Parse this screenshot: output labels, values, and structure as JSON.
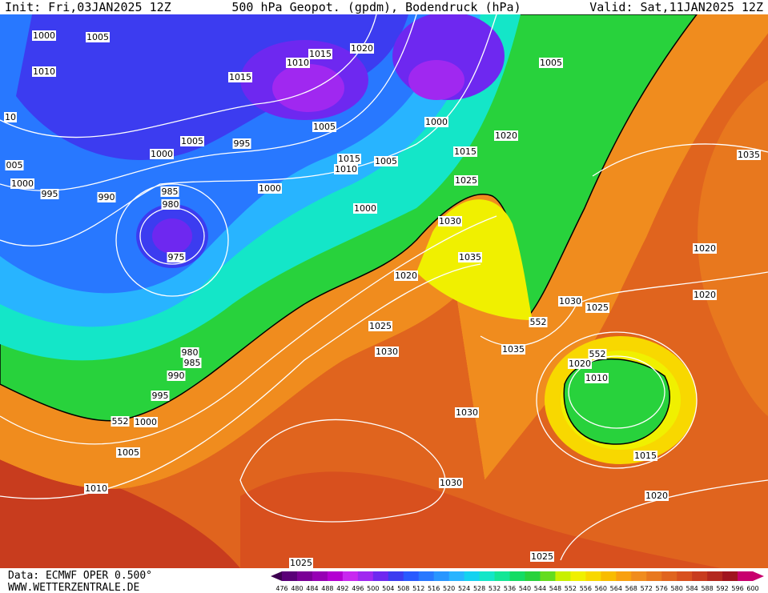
{
  "header": {
    "init": "Init: Fri,03JAN2025 12Z",
    "title": "500 hPa Geopot. (gpdm), Bodendruck (hPa)",
    "valid": "Valid: Sat,11JAN2025 12Z"
  },
  "isobar_labels": [
    "1000",
    "1005",
    "1010",
    "10",
    "005",
    "1000",
    "995",
    "990",
    "985",
    "980",
    "975",
    "1000",
    "1005",
    "995",
    "1015",
    "1010",
    "1015",
    "1020",
    "1005",
    "1005",
    "1000",
    "1020",
    "1015",
    "1015",
    "1010",
    "1005",
    "1025",
    "1000",
    "1000",
    "1030",
    "1035",
    "1020",
    "1025",
    "1030",
    "552",
    "1030",
    "1025",
    "1035",
    "552",
    "1020",
    "1010",
    "1035",
    "1020",
    "1020",
    "980",
    "985",
    "990",
    "995",
    "1000",
    "552",
    "1005",
    "1010",
    "1030",
    "1030",
    "1015",
    "1020",
    "1025",
    "1025"
  ],
  "colorbar": {
    "labels": [
      "476",
      "480",
      "484",
      "488",
      "492",
      "496",
      "500",
      "504",
      "508",
      "512",
      "516",
      "520",
      "524",
      "528",
      "532",
      "536",
      "540",
      "544",
      "548",
      "552",
      "556",
      "560",
      "564",
      "568",
      "572",
      "576",
      "580",
      "584",
      "588",
      "592",
      "596",
      "600"
    ],
    "colors": [
      "#3c0050",
      "#5a0078",
      "#7a0096",
      "#9600b4",
      "#b400d2",
      "#c828f0",
      "#a028f0",
      "#6e28f0",
      "#3c3cf0",
      "#285aff",
      "#2878ff",
      "#2896ff",
      "#28b4ff",
      "#14d2f0",
      "#14e6c8",
      "#14e696",
      "#14dc64",
      "#28d23c",
      "#64dc1e",
      "#c8f000",
      "#f0f000",
      "#f8d800",
      "#f8bc00",
      "#f8a010",
      "#f08c1e",
      "#e8781e",
      "#e0641e",
      "#d8501e",
      "#c83c1e",
      "#b4281e",
      "#a0141e",
      "#c8006e"
    ]
  },
  "footer": {
    "source": "Data: ECMWF OPER 0.500°",
    "site": "WWW.WETTERZENTRALE.DE"
  }
}
